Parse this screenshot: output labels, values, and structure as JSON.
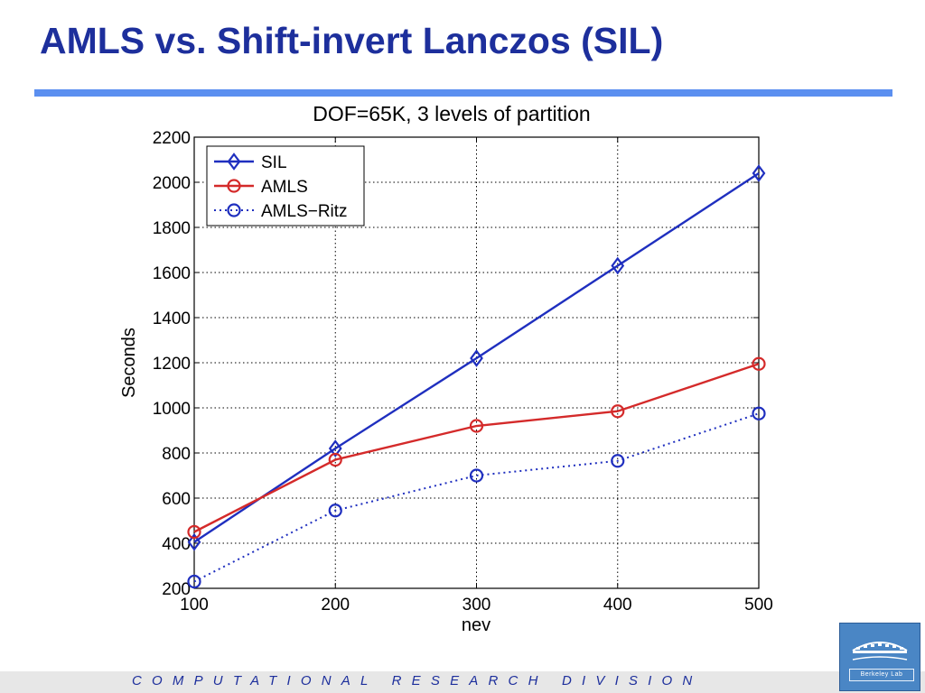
{
  "slide": {
    "title": "AMLS vs. Shift-invert Lanczos (SIL)",
    "footer": "COMPUTATIONAL RESEARCH DIVISION",
    "logo_text": "Berkeley Lab"
  },
  "colors": {
    "title": "#1d2f9c",
    "rule": "#5b8ff0",
    "sil": "#1f2fbf",
    "amls": "#d42a2a",
    "amls_ritz": "#1f2fbf"
  },
  "chart_data": {
    "type": "line",
    "title": "DOF=65K, 3 levels of partition",
    "xlabel": "nev",
    "ylabel": "Seconds",
    "x": [
      100,
      200,
      300,
      400,
      500
    ],
    "xlim": [
      100,
      500
    ],
    "ylim": [
      200,
      2200
    ],
    "xticks": [
      100,
      200,
      300,
      400,
      500
    ],
    "yticks": [
      200,
      400,
      600,
      800,
      1000,
      1200,
      1400,
      1600,
      1800,
      2000,
      2200
    ],
    "grid": true,
    "legend_position": "top-left",
    "series": [
      {
        "name": "SIL",
        "values": [
          405,
          820,
          1220,
          1630,
          2040
        ],
        "color": "#1f2fbf",
        "marker": "diamond",
        "style": "solid"
      },
      {
        "name": "AMLS",
        "values": [
          450,
          770,
          920,
          985,
          1195
        ],
        "color": "#d42a2a",
        "marker": "circle",
        "style": "solid"
      },
      {
        "name": "AMLS−Ritz",
        "values": [
          230,
          545,
          700,
          765,
          975
        ],
        "color": "#1f2fbf",
        "marker": "circle",
        "style": "dotted"
      }
    ]
  }
}
